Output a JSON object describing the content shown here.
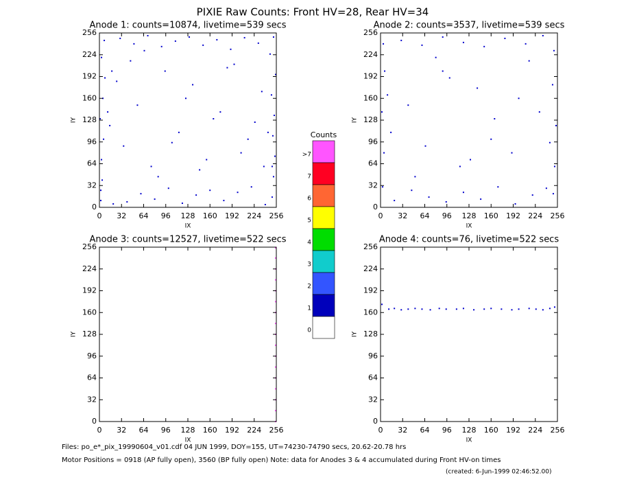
{
  "title": "PIXIE Raw Counts:  Front HV=28, Rear HV=34",
  "chart_data": [
    {
      "type": "scatter",
      "title": "Anode 1: counts=10874, livetime=539 secs",
      "x_label": "IX",
      "y_label": "IY",
      "xlim": [
        0,
        256
      ],
      "ylim": [
        0,
        256
      ],
      "xticks": [
        0,
        32,
        64,
        96,
        128,
        160,
        192,
        224,
        256
      ],
      "yticks": [
        0,
        32,
        64,
        96,
        128,
        160,
        192,
        224,
        256
      ],
      "color": "#0000cc",
      "x": [
        2,
        4,
        3,
        6,
        1,
        5,
        8,
        3,
        7,
        2,
        250,
        252,
        254,
        251,
        253,
        249,
        255,
        247,
        252,
        250,
        20,
        40,
        60,
        80,
        100,
        120,
        140,
        160,
        180,
        200,
        220,
        240,
        30,
        50,
        70,
        90,
        110,
        130,
        150,
        170,
        190,
        210,
        230,
        15,
        35,
        55,
        75,
        95,
        115,
        135,
        155,
        175,
        195,
        215,
        235,
        45,
        85,
        125,
        165,
        205,
        25,
        65,
        105,
        145,
        185,
        225,
        12,
        244,
        18,
        238
      ],
      "y": [
        10,
        40,
        70,
        100,
        130,
        160,
        190,
        220,
        245,
        25,
        15,
        45,
        75,
        105,
        135,
        165,
        195,
        225,
        250,
        60,
        5,
        8,
        20,
        12,
        28,
        6,
        18,
        25,
        10,
        22,
        30,
        4,
        248,
        240,
        252,
        236,
        244,
        250,
        238,
        246,
        232,
        249,
        241,
        120,
        90,
        150,
        60,
        200,
        110,
        180,
        70,
        140,
        210,
        100,
        170,
        215,
        45,
        160,
        130,
        80,
        185,
        230,
        95,
        55,
        205,
        125,
        140,
        110,
        200,
        60
      ]
    },
    {
      "type": "scatter",
      "title": "Anode 2: counts=3537, livetime=539 secs",
      "x_label": "IX",
      "y_label": "IY",
      "xlim": [
        0,
        256
      ],
      "ylim": [
        0,
        256
      ],
      "xticks": [
        0,
        32,
        64,
        96,
        128,
        160,
        192,
        224,
        256
      ],
      "yticks": [
        0,
        32,
        64,
        96,
        128,
        160,
        192,
        224,
        256
      ],
      "color": "#0000cc",
      "x": [
        3,
        5,
        2,
        6,
        4,
        250,
        252,
        254,
        249,
        251,
        20,
        45,
        70,
        95,
        120,
        145,
        170,
        195,
        220,
        240,
        30,
        60,
        90,
        120,
        150,
        180,
        210,
        235,
        15,
        40,
        65,
        90,
        115,
        140,
        165,
        190,
        215,
        50,
        100,
        160,
        200,
        80,
        130,
        230,
        10,
        245
      ],
      "y": [
        30,
        80,
        140,
        200,
        240,
        20,
        60,
        120,
        180,
        230,
        10,
        25,
        15,
        8,
        22,
        12,
        30,
        5,
        18,
        28,
        245,
        238,
        250,
        242,
        236,
        248,
        240,
        252,
        110,
        150,
        90,
        200,
        60,
        175,
        130,
        80,
        215,
        45,
        190,
        100,
        160,
        220,
        70,
        140,
        165,
        95
      ]
    },
    {
      "type": "scatter",
      "title": "Anode 3: counts=12527, livetime=522 secs",
      "x_label": "IX",
      "y_label": "IY",
      "xlim": [
        0,
        256
      ],
      "ylim": [
        0,
        256
      ],
      "xticks": [
        0,
        32,
        64,
        96,
        128,
        160,
        192,
        224,
        256
      ],
      "yticks": [
        0,
        32,
        64,
        96,
        128,
        160,
        192,
        224,
        256
      ],
      "color": "#ff55ff",
      "x": [
        255,
        255,
        255,
        255,
        255,
        255,
        255,
        255,
        255,
        255,
        255,
        255,
        255,
        255,
        255,
        255,
        255
      ],
      "y": [
        0,
        16,
        32,
        48,
        64,
        80,
        96,
        112,
        128,
        144,
        160,
        176,
        192,
        208,
        224,
        240,
        255
      ]
    },
    {
      "type": "scatter",
      "title": "Anode 4: counts=76, livetime=522 secs",
      "x_label": "IX",
      "y_label": "IY",
      "xlim": [
        0,
        256
      ],
      "ylim": [
        0,
        256
      ],
      "xticks": [
        0,
        32,
        64,
        96,
        128,
        160,
        192,
        224,
        256
      ],
      "yticks": [
        0,
        32,
        64,
        96,
        128,
        160,
        192,
        224,
        256
      ],
      "color": "#0000cc",
      "x": [
        2,
        12,
        20,
        30,
        40,
        50,
        60,
        72,
        85,
        95,
        110,
        120,
        135,
        150,
        160,
        175,
        190,
        200,
        215,
        225,
        235,
        245,
        252
      ],
      "y": [
        172,
        165,
        166,
        164,
        165,
        166,
        165,
        164,
        166,
        165,
        165,
        166,
        164,
        165,
        166,
        165,
        164,
        165,
        166,
        165,
        164,
        166,
        168
      ]
    }
  ],
  "colorbar": {
    "title": "Counts",
    "categories": [
      ">7",
      "7",
      "6",
      "5",
      "4",
      "3",
      "2",
      "1",
      "0"
    ],
    "colors": [
      "#ff55ff",
      "#ff0022",
      "#ff6633",
      "#ffff00",
      "#00dd00",
      "#11cccc",
      "#3355ff",
      "#0000bb",
      "#ffffff"
    ]
  },
  "footer": {
    "files": "Files: po_e*_pix_19990604_v01.cdf    04 JUN 1999, DOY=155, UT=74230-74790 secs, 20.62-20.78 hrs",
    "motor": "Motor Positions = 0918 (AP fully open), 3560 (BP fully open)    Note: data for Anodes 3 & 4 accumulated during Front HV-on times",
    "created": "(created:  6-Jun-1999 02:46:52.00)"
  }
}
